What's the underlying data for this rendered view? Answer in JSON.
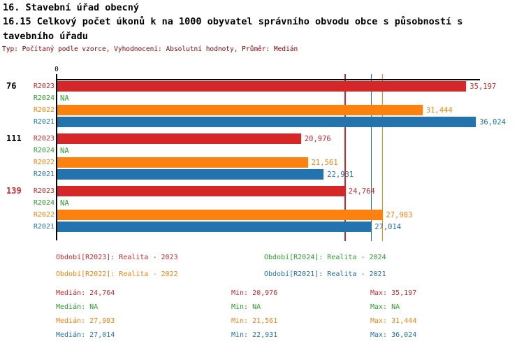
{
  "header": {
    "title": "16. Stavební úřad obecný",
    "subtitle_line1": "16.15 Celkový počet úkonů k na 1000 obyvatel správního obvodu obce s působností s",
    "subtitle_line2": "tavebního úřadu",
    "meta": "Typ: Počítaný podle vzorce, Vyhodnocení: Absolutní hodnoty, Průměr: Medián"
  },
  "colors": {
    "r2023": "#d62728",
    "r2024": "#2ca02c",
    "r2022": "#fd810e",
    "r2021": "#2373ae",
    "meta_text": "#8b0000",
    "axis": "#000000"
  },
  "chart_data": {
    "type": "bar",
    "orientation": "horizontal",
    "x_axis": {
      "tick_labels": [
        "0"
      ],
      "xmax": 36400,
      "grid": false
    },
    "series_names": [
      "R2023",
      "R2024",
      "R2022",
      "R2021"
    ],
    "groups": [
      {
        "label": "76",
        "highlighted": false,
        "values": {
          "R2023": 35197,
          "R2024": null,
          "R2022": 31444,
          "R2021": 36024
        },
        "display": {
          "R2023": "35,197",
          "R2024": "NA",
          "R2022": "31,444",
          "R2021": "36,024"
        }
      },
      {
        "label": "111",
        "highlighted": false,
        "values": {
          "R2023": 20976,
          "R2024": null,
          "R2022": 21561,
          "R2021": 22931
        },
        "display": {
          "R2023": "20,976",
          "R2024": "NA",
          "R2022": "21,561",
          "R2021": "22,931"
        }
      },
      {
        "label": "139",
        "highlighted": true,
        "values": {
          "R2023": 24764,
          "R2024": null,
          "R2022": 27983,
          "R2021": 27014
        },
        "display": {
          "R2023": "24,764",
          "R2024": "NA",
          "R2022": "27,983",
          "R2021": "27,014"
        }
      }
    ],
    "median_lines": [
      {
        "series": "R2023",
        "value": 24764
      },
      {
        "series": "R2021",
        "value": 27014
      },
      {
        "series": "R2022",
        "value": 27983
      }
    ],
    "legend": [
      {
        "series": "R2023",
        "label": "Období[R2023]: Realita - 2023"
      },
      {
        "series": "R2024",
        "label": "Období[R2024]: Realita - 2024"
      },
      {
        "series": "R2022",
        "label": "Období[R2022]: Realita - 2022"
      },
      {
        "series": "R2021",
        "label": "Období[R2021]: Realita - 2021"
      }
    ],
    "stats": [
      {
        "series": "R2023",
        "median": "Medián: 24,764",
        "min": "Min: 20,976",
        "max": "Max: 35,197"
      },
      {
        "series": "R2024",
        "median": "Medián: NA",
        "min": "Min: NA",
        "max": "Max: NA"
      },
      {
        "series": "R2022",
        "median": "Medián: 27,983",
        "min": "Min: 21,561",
        "max": "Max: 31,444"
      },
      {
        "series": "R2021",
        "median": "Medián: 27,014",
        "min": "Min: 22,931",
        "max": "Max: 36,024"
      }
    ]
  }
}
